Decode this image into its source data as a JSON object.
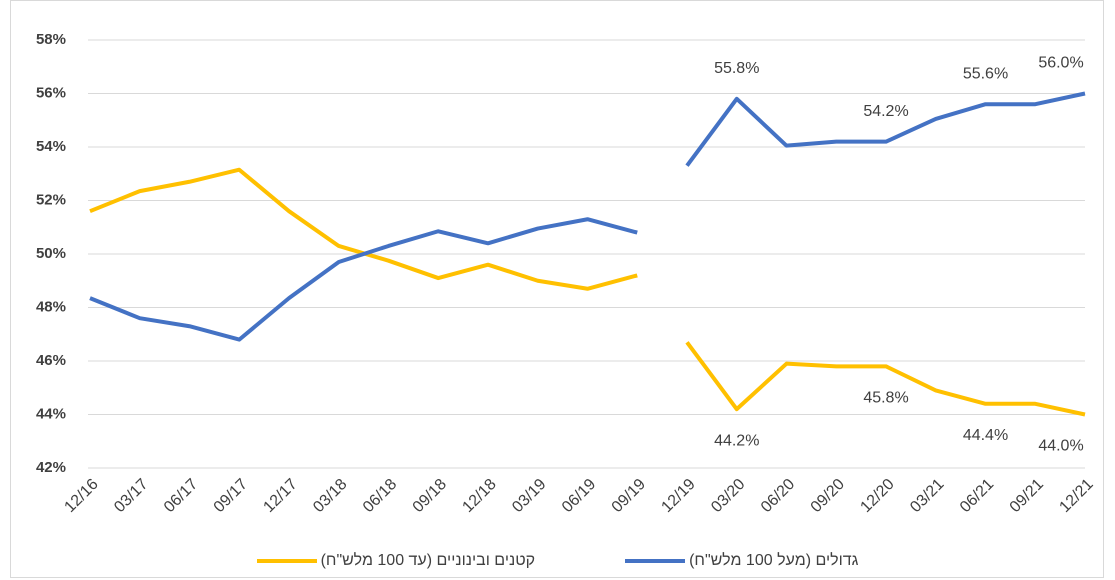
{
  "chart_data": {
    "type": "line",
    "categories": [
      "12/16",
      "03/17",
      "06/17",
      "09/17",
      "12/17",
      "03/18",
      "06/18",
      "09/18",
      "12/18",
      "03/19",
      "06/19",
      "09/19",
      "12/19",
      "03/20",
      "06/20",
      "09/20",
      "12/20",
      "03/21",
      "06/21",
      "09/21",
      "12/21"
    ],
    "gap_before": "12/19",
    "series": [
      {
        "name": "קטנים ובינוניים (עד 100 מלש\"ח)",
        "color": "#ffc000",
        "values": [
          51.6,
          52.35,
          52.7,
          53.15,
          51.6,
          50.3,
          49.75,
          49.1,
          49.6,
          49.0,
          48.7,
          49.2,
          46.7,
          44.2,
          45.9,
          45.8,
          45.8,
          44.9,
          44.4,
          44.4,
          44.0
        ],
        "value_labels": [
          null,
          null,
          null,
          null,
          null,
          null,
          null,
          null,
          null,
          null,
          null,
          null,
          null,
          "44.2%",
          null,
          null,
          "45.8%",
          null,
          "44.4%",
          null,
          "44.0%"
        ]
      },
      {
        "name": "גדולים (מעל 100 מלש\"ח)",
        "color": "#4472c4",
        "values": [
          48.35,
          47.6,
          47.3,
          46.8,
          48.35,
          49.7,
          50.3,
          50.85,
          50.4,
          50.95,
          51.3,
          50.8,
          53.3,
          55.8,
          54.05,
          54.2,
          54.2,
          55.05,
          55.6,
          55.6,
          56.0
        ],
        "value_labels": [
          null,
          null,
          null,
          null,
          null,
          null,
          null,
          null,
          null,
          null,
          null,
          null,
          null,
          "55.8%",
          null,
          null,
          "54.2%",
          null,
          "55.6%",
          null,
          "56.0%"
        ]
      }
    ],
    "ylim": [
      42,
      58
    ],
    "yticks": [
      {
        "value": 42,
        "label": "42%"
      },
      {
        "value": 44,
        "label": "44%"
      },
      {
        "value": 46,
        "label": "46%"
      },
      {
        "value": 48,
        "label": "48%"
      },
      {
        "value": 50,
        "label": "50%"
      },
      {
        "value": 52,
        "label": "52%"
      },
      {
        "value": 54,
        "label": "54%"
      },
      {
        "value": 56,
        "label": "56%"
      },
      {
        "value": 58,
        "label": "58%"
      }
    ],
    "grid": true,
    "legend": "bottom"
  }
}
